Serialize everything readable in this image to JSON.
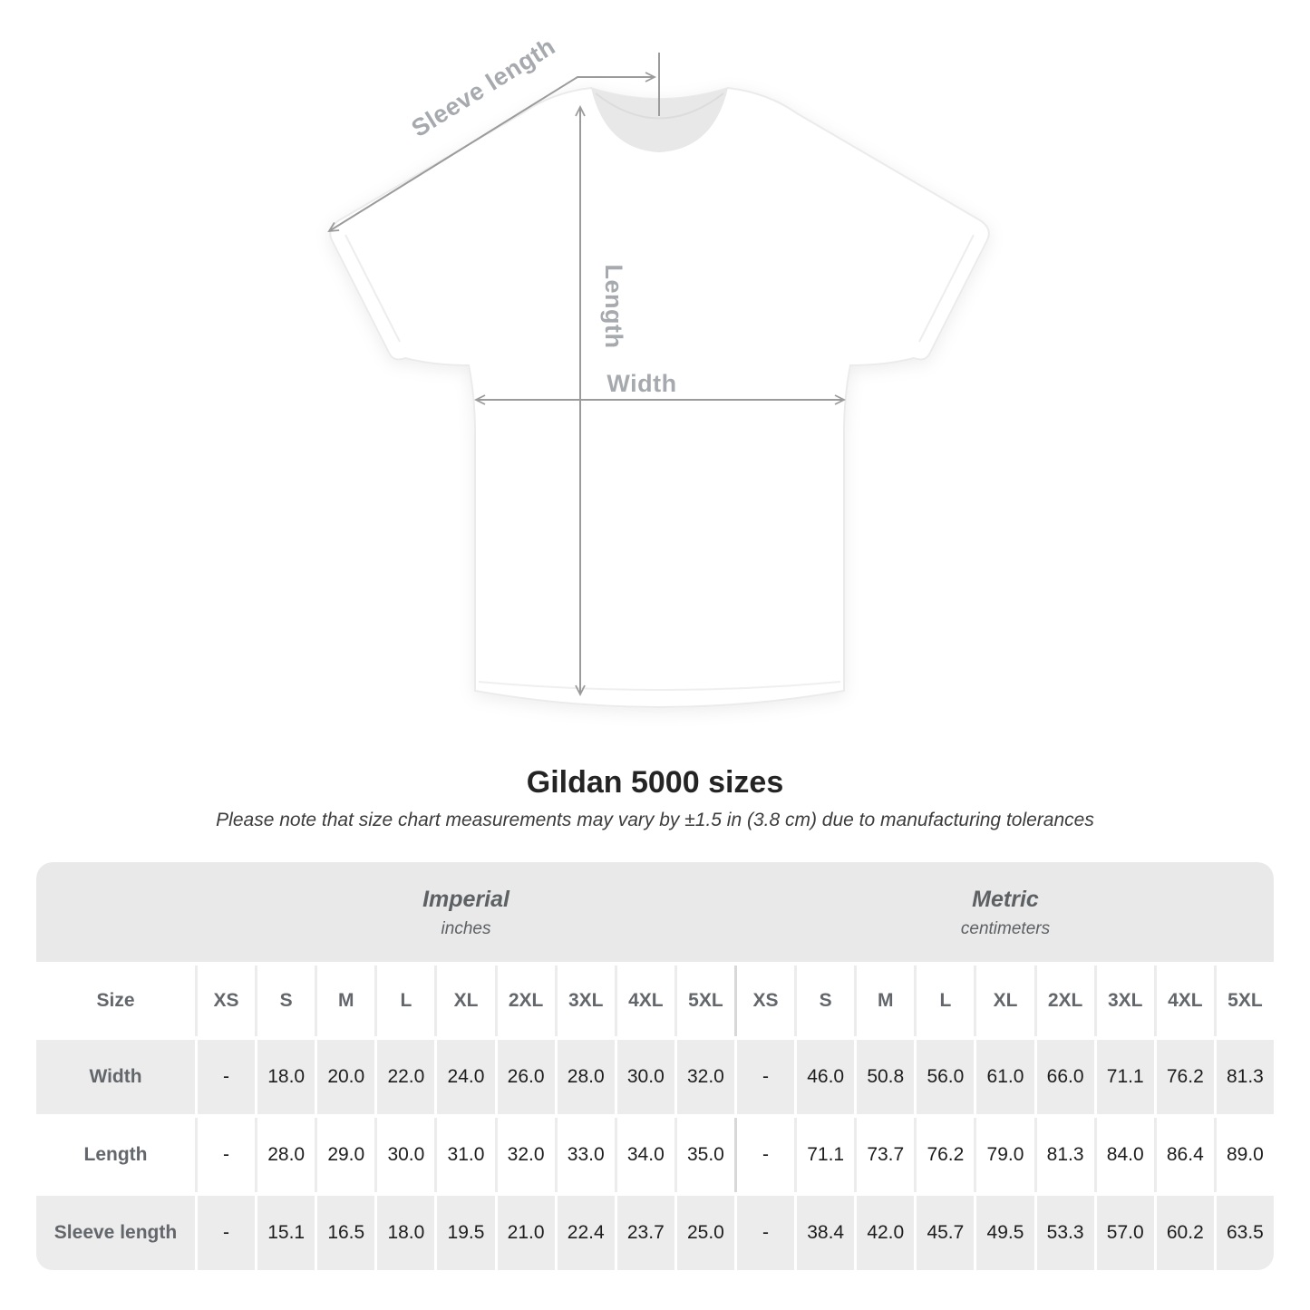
{
  "diagram": {
    "labels": {
      "sleeve_length": "Sleeve length",
      "length": "Length",
      "width": "Width"
    }
  },
  "heading": {
    "title": "Gildan 5000 sizes",
    "subtitle": "Please note that size chart measurements may vary by ±1.5 in (3.8 cm) due to manufacturing tolerances"
  },
  "table": {
    "unit_groups": [
      {
        "name": "Imperial",
        "unit": "inches"
      },
      {
        "name": "Metric",
        "unit": "centimeters"
      }
    ],
    "size_header": "Size",
    "sizes": [
      "XS",
      "S",
      "M",
      "L",
      "XL",
      "2XL",
      "3XL",
      "4XL",
      "5XL"
    ],
    "rows": [
      {
        "label": "Width",
        "imperial": [
          "-",
          "18.0",
          "20.0",
          "22.0",
          "24.0",
          "26.0",
          "28.0",
          "30.0",
          "32.0"
        ],
        "metric": [
          "-",
          "46.0",
          "50.8",
          "56.0",
          "61.0",
          "66.0",
          "71.1",
          "76.2",
          "81.3"
        ]
      },
      {
        "label": "Length",
        "imperial": [
          "-",
          "28.0",
          "29.0",
          "30.0",
          "31.0",
          "32.0",
          "33.0",
          "34.0",
          "35.0"
        ],
        "metric": [
          "-",
          "71.1",
          "73.7",
          "76.2",
          "79.0",
          "81.3",
          "84.0",
          "86.4",
          "89.0"
        ]
      },
      {
        "label": "Sleeve length",
        "imperial": [
          "-",
          "15.1",
          "16.5",
          "18.0",
          "19.5",
          "21.0",
          "22.4",
          "23.7",
          "25.0"
        ],
        "metric": [
          "-",
          "38.4",
          "42.0",
          "45.7",
          "49.5",
          "53.3",
          "57.0",
          "60.2",
          "63.5"
        ]
      }
    ]
  },
  "colors": {
    "band_bg": "#e9e9e9",
    "row_gray_bg": "#ececec",
    "metric_divider": "#d8d8d8",
    "header_text": "#63676b",
    "value_text": "#1d1d1d",
    "annotation_text": "#a6aaae",
    "arrow": "#9b9b9b"
  }
}
